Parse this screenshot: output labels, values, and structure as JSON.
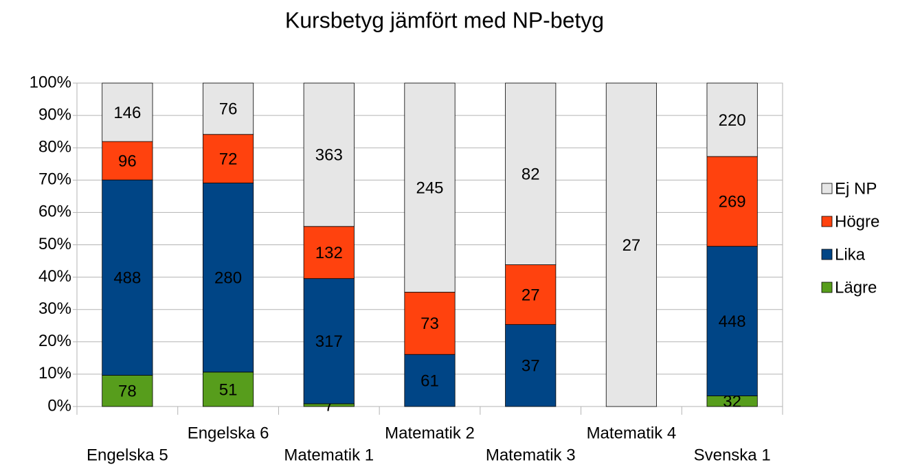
{
  "chart_data": {
    "type": "bar",
    "stack": "percent",
    "title": "Kursbetyg jämfört med NP-betyg",
    "categories": [
      "Engelska 5",
      "Engelska 6",
      "Matematik 1",
      "Matematik 2",
      "Matematik 3",
      "Matematik 4",
      "Svenska 1"
    ],
    "series": [
      {
        "name": "Lägre",
        "color": "#579d1c",
        "values": [
          78,
          51,
          7,
          null,
          null,
          null,
          32
        ]
      },
      {
        "name": "Lika",
        "color": "#004586",
        "values": [
          488,
          280,
          317,
          61,
          37,
          null,
          448
        ]
      },
      {
        "name": "Högre",
        "color": "#ff420e",
        "values": [
          96,
          72,
          132,
          73,
          27,
          null,
          269
        ]
      },
      {
        "name": "Ej NP",
        "color": "#e6e6e6",
        "values": [
          146,
          76,
          363,
          245,
          82,
          27,
          220
        ]
      }
    ],
    "ylim": [
      0,
      100
    ],
    "yticks": [
      {
        "value": 0,
        "label": "0%"
      },
      {
        "value": 10,
        "label": "10%"
      },
      {
        "value": 20,
        "label": "20%"
      },
      {
        "value": 30,
        "label": "30%"
      },
      {
        "value": 40,
        "label": "40%"
      },
      {
        "value": 50,
        "label": "50%"
      },
      {
        "value": 60,
        "label": "60%"
      },
      {
        "value": 70,
        "label": "70%"
      },
      {
        "value": 80,
        "label": "80%"
      },
      {
        "value": 90,
        "label": "90%"
      },
      {
        "value": 100,
        "label": "100%"
      }
    ],
    "grid": true,
    "legend": "right"
  }
}
